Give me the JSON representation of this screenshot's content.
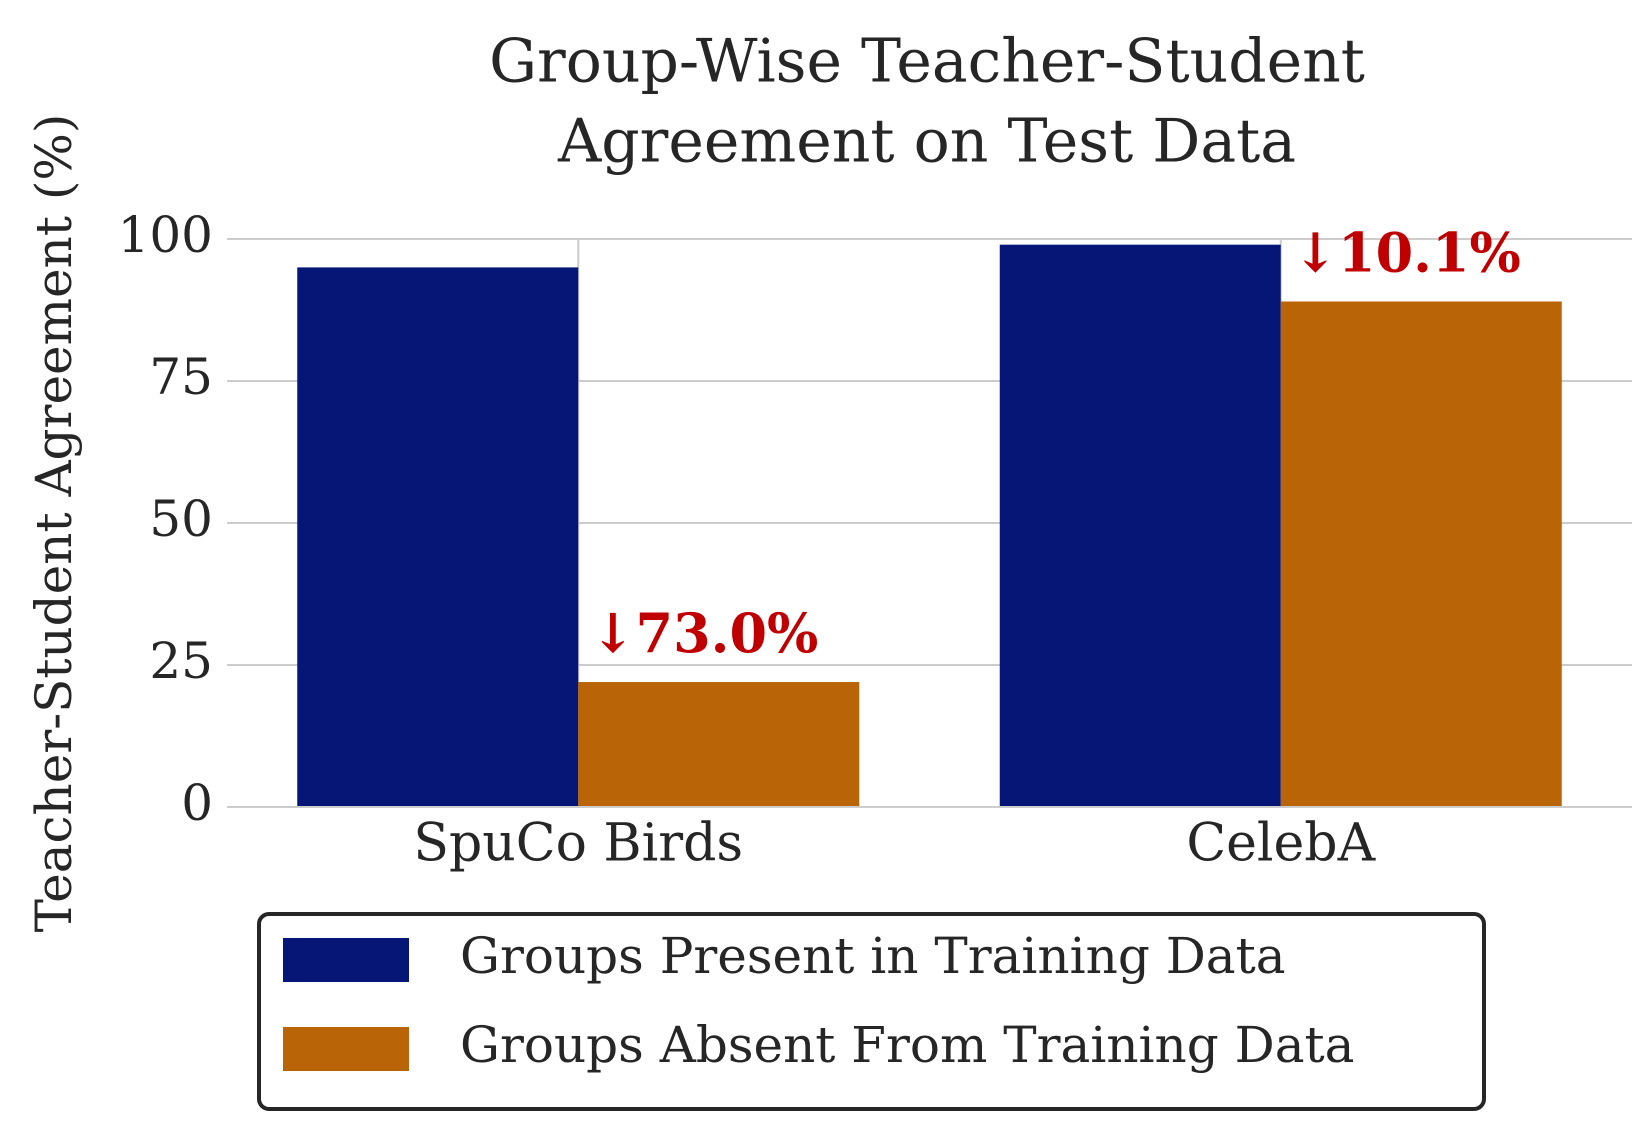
{
  "chart_data": {
    "type": "bar",
    "title": [
      "Group-Wise Teacher-Student",
      "Agreement on Test Data"
    ],
    "y_label": "Teacher-Student Agreement (%)",
    "categories": [
      "SpuCo Birds",
      "CelebA"
    ],
    "series": [
      {
        "name": "Groups Present in Training Data",
        "color": "#061676",
        "values": [
          95,
          99
        ]
      },
      {
        "name": "Groups Absent From Training Data",
        "color": "#b86407",
        "values": [
          22,
          89
        ]
      }
    ],
    "annotations": [
      "↓73.0%",
      "↓10.1%"
    ],
    "annotation_color": "#c00000",
    "ylim": [
      0,
      100
    ],
    "yticks": [
      0,
      25,
      50,
      75,
      100
    ],
    "grid": true,
    "legend": "below"
  }
}
